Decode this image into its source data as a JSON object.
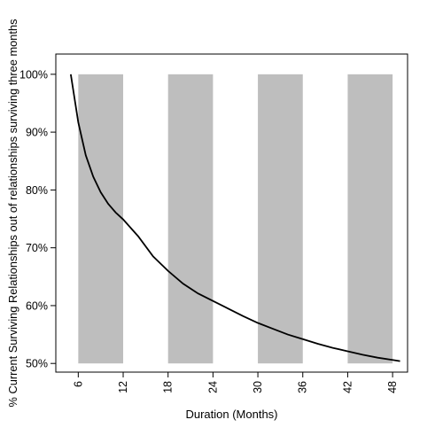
{
  "chart_data": {
    "type": "line",
    "title": "",
    "xlabel": "Duration (Months)",
    "ylabel": "% Current Surviving Relationships out of relationships surviving three months",
    "xlim": [
      3,
      50
    ],
    "ylim": [
      48.5,
      103.5
    ],
    "x_ticks": [
      6,
      12,
      18,
      24,
      30,
      36,
      42,
      48
    ],
    "x_tick_labels": [
      "6",
      "12",
      "18",
      "24",
      "30",
      "36",
      "42",
      "48"
    ],
    "y_ticks": [
      50,
      60,
      70,
      80,
      90,
      100
    ],
    "y_tick_labels": [
      "50%",
      "60%",
      "70%",
      "80%",
      "90%",
      "100%"
    ],
    "bands": [
      {
        "x0": 6,
        "x1": 12,
        "y0": 50,
        "y1": 100
      },
      {
        "x0": 18,
        "x1": 24,
        "y0": 50,
        "y1": 100
      },
      {
        "x0": 30,
        "x1": 36,
        "y0": 50,
        "y1": 100
      },
      {
        "x0": 42,
        "x1": 48,
        "y0": 50,
        "y1": 100
      }
    ],
    "series": [
      {
        "x": [
          5,
          6,
          7,
          8,
          9,
          10,
          11,
          12,
          14,
          16,
          18,
          20,
          22,
          24,
          26,
          28,
          30,
          32,
          34,
          36,
          38,
          40,
          42,
          44,
          46,
          48,
          49
        ],
        "values": [
          100,
          91.7,
          86.0,
          82.3,
          79.6,
          77.6,
          76.1,
          74.9,
          72.0,
          68.5,
          66.0,
          63.8,
          62.1,
          60.8,
          59.5,
          58.2,
          57.0,
          56.0,
          55.0,
          54.2,
          53.4,
          52.7,
          52.1,
          51.5,
          51.0,
          50.6,
          50.4
        ]
      }
    ],
    "grid": false,
    "band_color": "#bebebe",
    "line_color": "#000000"
  }
}
